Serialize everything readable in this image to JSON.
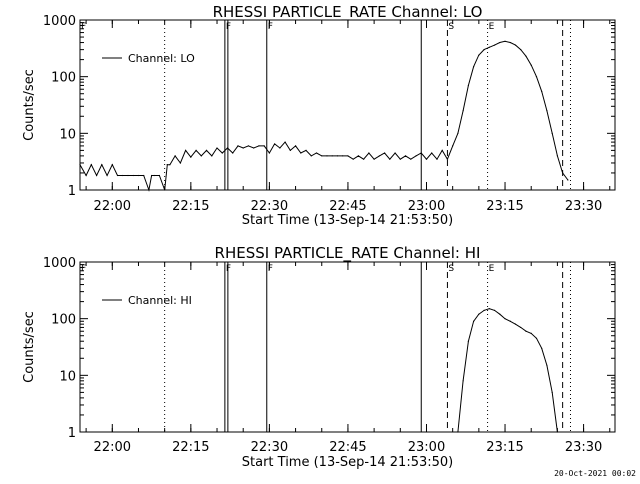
{
  "footer_date": "20-Oct-2021 00:02",
  "chart_data": [
    {
      "type": "line",
      "title": "RHESSI PARTICLE_RATE Channel: LO",
      "xlabel": "Start Time (13-Sep-14 21:53:50)",
      "ylabel": "Counts/sec",
      "yscale": "log",
      "ylim": [
        1,
        1000
      ],
      "xlim": [
        "21:53:50",
        "23:36:00"
      ],
      "x_ticks": [
        "22:00",
        "22:15",
        "22:30",
        "22:45",
        "23:00",
        "23:15",
        "23:30"
      ],
      "y_ticks": [
        "1",
        "10",
        "100",
        "1000"
      ],
      "legend": {
        "label": "Channel: LO",
        "position": "top-left"
      },
      "markers": [
        {
          "time": "22:10",
          "style": "dotted",
          "label": ""
        },
        {
          "time": "22:21:30",
          "style": "solid-double",
          "label": "F"
        },
        {
          "time": "22:29:30",
          "style": "solid",
          "label": "F"
        },
        {
          "time": "22:59",
          "style": "solid",
          "label": ""
        },
        {
          "time": "23:04",
          "style": "dashed",
          "label": "S"
        },
        {
          "time": "23:11:40",
          "style": "dotted",
          "label": "E"
        },
        {
          "time": "23:26",
          "style": "dashed",
          "label": ""
        },
        {
          "time": "23:27:30",
          "style": "dotted",
          "label": ""
        }
      ],
      "edge_labels": [
        "F"
      ],
      "series": [
        {
          "values": [
            [
              "21:53:50",
              2.8
            ],
            [
              "21:55:00",
              1.8
            ],
            [
              "21:56:00",
              2.8
            ],
            [
              "21:57:00",
              1.8
            ],
            [
              "21:58:00",
              2.8
            ],
            [
              "21:59:00",
              1.8
            ],
            [
              "22:00:00",
              2.8
            ],
            [
              "22:01:00",
              1.8
            ],
            [
              "22:02:00",
              1.8
            ],
            [
              "22:03:00",
              1.8
            ],
            [
              "22:04:00",
              1.8
            ],
            [
              "22:05:00",
              1.8
            ],
            [
              "22:06:00",
              1.8
            ],
            [
              "22:07:00",
              1.0
            ],
            [
              "22:07:30",
              1.8
            ],
            [
              "22:08:00",
              1.8
            ],
            [
              "22:09:00",
              1.8
            ],
            [
              "22:10:00",
              1.0
            ],
            [
              "22:10:30",
              2.8
            ],
            [
              "22:11:00",
              2.8
            ],
            [
              "22:12:00",
              4.0
            ],
            [
              "22:13:00",
              3.0
            ],
            [
              "22:14:00",
              5.0
            ],
            [
              "22:15:00",
              3.8
            ],
            [
              "22:16:00",
              5.0
            ],
            [
              "22:17:00",
              4.0
            ],
            [
              "22:18:00",
              5.0
            ],
            [
              "22:19:00",
              4.0
            ],
            [
              "22:20:00",
              5.5
            ],
            [
              "22:21:00",
              4.5
            ],
            [
              "22:22:00",
              5.5
            ],
            [
              "22:23:00",
              4.5
            ],
            [
              "22:24:00",
              6.0
            ],
            [
              "22:25:00",
              5.5
            ],
            [
              "22:26:00",
              6.0
            ],
            [
              "22:27:00",
              5.5
            ],
            [
              "22:28:00",
              6.0
            ],
            [
              "22:29:00",
              6.0
            ],
            [
              "22:30:00",
              4.5
            ],
            [
              "22:31:00",
              6.5
            ],
            [
              "22:32:00",
              5.5
            ],
            [
              "22:33:00",
              7.0
            ],
            [
              "22:34:00",
              5.0
            ],
            [
              "22:35:00",
              6.0
            ],
            [
              "22:36:00",
              4.5
            ],
            [
              "22:37:00",
              5.0
            ],
            [
              "22:38:00",
              4.0
            ],
            [
              "22:39:00",
              4.5
            ],
            [
              "22:40:00",
              4.0
            ],
            [
              "22:41:00",
              4.0
            ],
            [
              "22:42:00",
              4.0
            ],
            [
              "22:43:00",
              4.0
            ],
            [
              "22:44:00",
              4.0
            ],
            [
              "22:45:00",
              4.0
            ],
            [
              "22:46:00",
              3.5
            ],
            [
              "22:47:00",
              4.0
            ],
            [
              "22:48:00",
              3.5
            ],
            [
              "22:49:00",
              4.5
            ],
            [
              "22:50:00",
              3.5
            ],
            [
              "22:51:00",
              4.0
            ],
            [
              "22:52:00",
              4.5
            ],
            [
              "22:53:00",
              3.5
            ],
            [
              "22:54:00",
              4.5
            ],
            [
              "22:55:00",
              3.5
            ],
            [
              "22:56:00",
              4.0
            ],
            [
              "22:57:00",
              3.5
            ],
            [
              "22:58:00",
              4.0
            ],
            [
              "22:59:00",
              4.5
            ],
            [
              "23:00:00",
              3.5
            ],
            [
              "23:01:00",
              4.5
            ],
            [
              "23:02:00",
              3.5
            ],
            [
              "23:03:00",
              5.0
            ],
            [
              "23:04:00",
              3.5
            ],
            [
              "23:05:00",
              6.0
            ],
            [
              "23:06:00",
              10
            ],
            [
              "23:07:00",
              25
            ],
            [
              "23:08:00",
              70
            ],
            [
              "23:09:00",
              150
            ],
            [
              "23:10:00",
              240
            ],
            [
              "23:11:00",
              300
            ],
            [
              "23:12:00",
              330
            ],
            [
              "23:13:00",
              360
            ],
            [
              "23:14:00",
              400
            ],
            [
              "23:15:00",
              420
            ],
            [
              "23:16:00",
              400
            ],
            [
              "23:17:00",
              360
            ],
            [
              "23:18:00",
              300
            ],
            [
              "23:19:00",
              230
            ],
            [
              "23:20:00",
              160
            ],
            [
              "23:21:00",
              100
            ],
            [
              "23:22:00",
              55
            ],
            [
              "23:23:00",
              25
            ],
            [
              "23:24:00",
              10
            ],
            [
              "23:25:00",
              4.0
            ],
            [
              "23:26:00",
              2.0
            ],
            [
              "23:27:00",
              1.5
            ]
          ]
        }
      ]
    },
    {
      "type": "line",
      "title": "RHESSI PARTICLE_RATE Channel: HI",
      "xlabel": "Start Time (13-Sep-14 21:53:50)",
      "ylabel": "Counts/sec",
      "yscale": "log",
      "ylim": [
        1,
        1000
      ],
      "xlim": [
        "21:53:50",
        "23:36:00"
      ],
      "x_ticks": [
        "22:00",
        "22:15",
        "22:30",
        "22:45",
        "23:00",
        "23:15",
        "23:30"
      ],
      "y_ticks": [
        "1",
        "10",
        "100",
        "1000"
      ],
      "legend": {
        "label": "Channel: HI",
        "position": "top-left"
      },
      "markers": [
        {
          "time": "22:10",
          "style": "dotted",
          "label": ""
        },
        {
          "time": "22:21:30",
          "style": "solid-double",
          "label": "F"
        },
        {
          "time": "22:29:30",
          "style": "solid",
          "label": "F"
        },
        {
          "time": "22:59",
          "style": "solid",
          "label": ""
        },
        {
          "time": "23:04",
          "style": "dashed",
          "label": "S"
        },
        {
          "time": "23:11:40",
          "style": "dotted",
          "label": "E"
        },
        {
          "time": "23:26",
          "style": "dashed",
          "label": ""
        },
        {
          "time": "23:27:30",
          "style": "dotted",
          "label": ""
        }
      ],
      "edge_labels": [
        "F"
      ],
      "series": [
        {
          "values": [
            [
              "23:06:00",
              1.0
            ],
            [
              "23:07:00",
              8
            ],
            [
              "23:08:00",
              40
            ],
            [
              "23:09:00",
              90
            ],
            [
              "23:10:00",
              120
            ],
            [
              "23:11:00",
              140
            ],
            [
              "23:12:00",
              150
            ],
            [
              "23:13:00",
              140
            ],
            [
              "23:14:00",
              120
            ],
            [
              "23:15:00",
              100
            ],
            [
              "23:16:00",
              90
            ],
            [
              "23:17:00",
              80
            ],
            [
              "23:18:00",
              70
            ],
            [
              "23:19:00",
              60
            ],
            [
              "23:20:00",
              55
            ],
            [
              "23:21:00",
              45
            ],
            [
              "23:22:00",
              30
            ],
            [
              "23:23:00",
              15
            ],
            [
              "23:24:00",
              5
            ],
            [
              "23:25:00",
              1.0
            ]
          ]
        }
      ]
    }
  ]
}
